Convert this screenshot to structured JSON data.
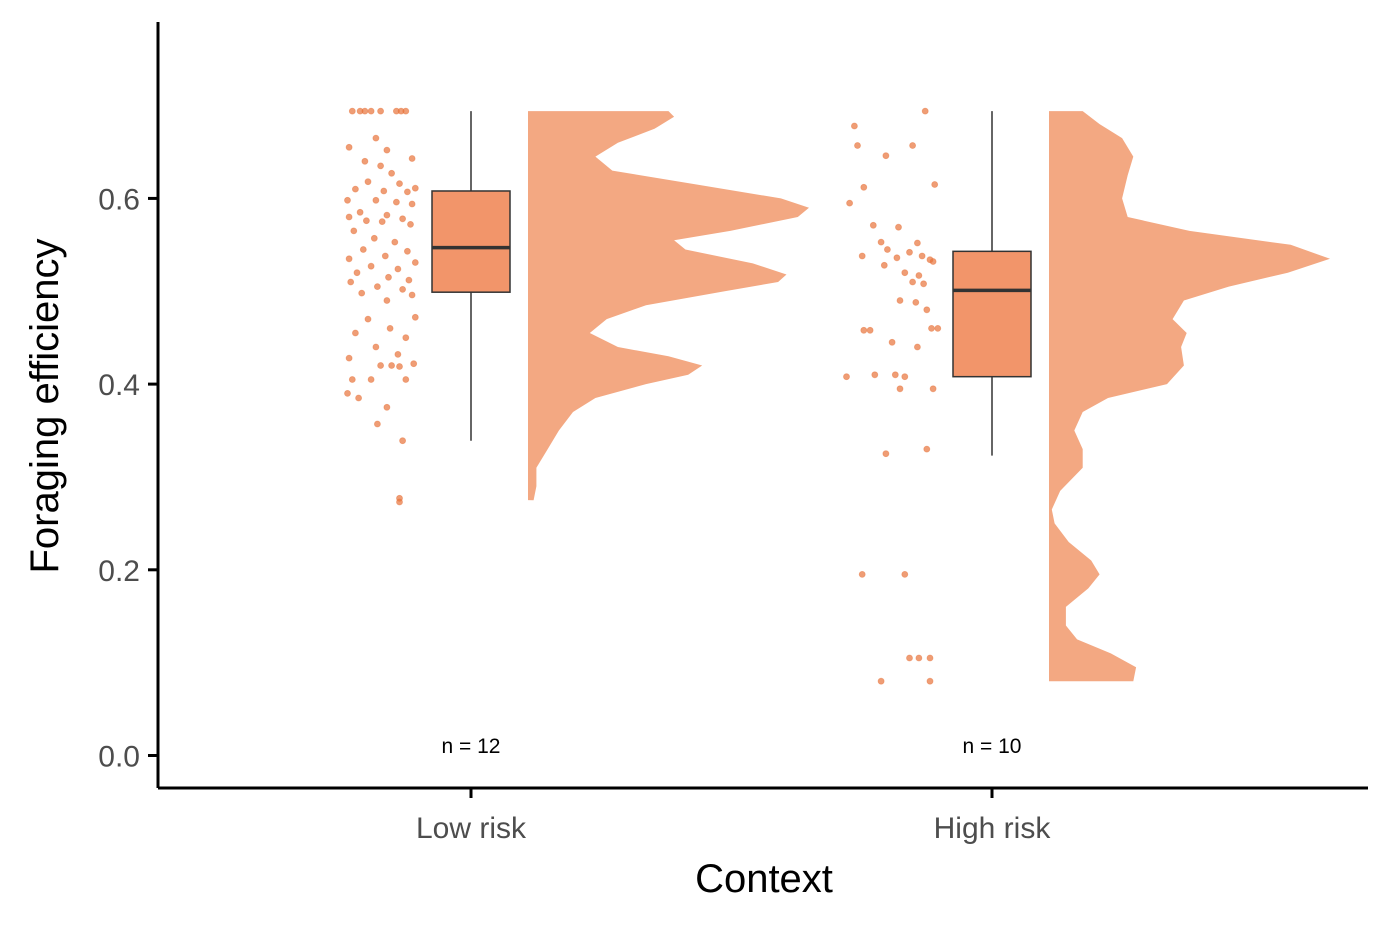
{
  "chart_data": {
    "type": "raincloud",
    "xlabel": "Context",
    "ylabel": "Foraging efficiency",
    "ylim": [
      -0.035,
      0.79
    ],
    "yticks": [
      0.0,
      0.2,
      0.4,
      0.6
    ],
    "ytick_labels": [
      "0.0",
      "0.2",
      "0.4",
      "0.6"
    ],
    "categories": [
      "Low risk",
      "High risk"
    ],
    "colors": {
      "point": "#e8743b",
      "box_fill": "#f2956a",
      "density_fill": "#f3a882",
      "line": "#333333",
      "axis": "#000000"
    },
    "groups": [
      {
        "name": "Low risk",
        "n_label": "n = 12",
        "box": {
          "q1": 0.499,
          "median": 0.547,
          "q3": 0.608,
          "whisker_low": 0.339,
          "whisker_high": 0.694
        },
        "density": [
          [
            0.275,
            0.02
          ],
          [
            0.29,
            0.03
          ],
          [
            0.31,
            0.03
          ],
          [
            0.33,
            0.07
          ],
          [
            0.35,
            0.11
          ],
          [
            0.37,
            0.16
          ],
          [
            0.385,
            0.24
          ],
          [
            0.4,
            0.42
          ],
          [
            0.41,
            0.57
          ],
          [
            0.42,
            0.62
          ],
          [
            0.43,
            0.5
          ],
          [
            0.44,
            0.32
          ],
          [
            0.455,
            0.22
          ],
          [
            0.47,
            0.28
          ],
          [
            0.485,
            0.42
          ],
          [
            0.5,
            0.7
          ],
          [
            0.51,
            0.89
          ],
          [
            0.518,
            0.92
          ],
          [
            0.53,
            0.8
          ],
          [
            0.545,
            0.56
          ],
          [
            0.555,
            0.52
          ],
          [
            0.565,
            0.72
          ],
          [
            0.58,
            0.96
          ],
          [
            0.59,
            1.0
          ],
          [
            0.6,
            0.9
          ],
          [
            0.615,
            0.6
          ],
          [
            0.63,
            0.3
          ],
          [
            0.645,
            0.24
          ],
          [
            0.66,
            0.32
          ],
          [
            0.675,
            0.45
          ],
          [
            0.688,
            0.52
          ],
          [
            0.694,
            0.5
          ]
        ],
        "points": [
          [
            -0.05,
            0.694
          ],
          [
            -0.1,
            0.694
          ],
          [
            0.02,
            0.694
          ],
          [
            0.18,
            0.694
          ],
          [
            0.21,
            0.694
          ],
          [
            0.08,
            0.694
          ],
          [
            0.24,
            0.694
          ],
          [
            -0.02,
            0.694
          ],
          [
            0.05,
            0.665
          ],
          [
            -0.12,
            0.655
          ],
          [
            0.12,
            0.652
          ],
          [
            0.28,
            0.643
          ],
          [
            -0.02,
            0.64
          ],
          [
            0.08,
            0.635
          ],
          [
            0.15,
            0.627
          ],
          [
            0.0,
            0.618
          ],
          [
            0.2,
            0.616
          ],
          [
            0.3,
            0.611
          ],
          [
            -0.08,
            0.61
          ],
          [
            0.1,
            0.608
          ],
          [
            0.25,
            0.607
          ],
          [
            -0.13,
            0.598
          ],
          [
            0.05,
            0.598
          ],
          [
            0.18,
            0.596
          ],
          [
            0.28,
            0.594
          ],
          [
            -0.05,
            0.585
          ],
          [
            0.12,
            0.582
          ],
          [
            -0.12,
            0.58
          ],
          [
            0.22,
            0.578
          ],
          [
            -0.01,
            0.576
          ],
          [
            0.09,
            0.575
          ],
          [
            0.27,
            0.572
          ],
          [
            -0.09,
            0.565
          ],
          [
            0.04,
            0.557
          ],
          [
            0.17,
            0.553
          ],
          [
            -0.03,
            0.545
          ],
          [
            0.25,
            0.543
          ],
          [
            0.11,
            0.538
          ],
          [
            -0.12,
            0.535
          ],
          [
            0.3,
            0.531
          ],
          [
            0.02,
            0.527
          ],
          [
            0.19,
            0.524
          ],
          [
            -0.07,
            0.52
          ],
          [
            0.13,
            0.515
          ],
          [
            0.26,
            0.512
          ],
          [
            -0.11,
            0.51
          ],
          [
            0.06,
            0.505
          ],
          [
            0.22,
            0.502
          ],
          [
            -0.04,
            0.498
          ],
          [
            0.28,
            0.496
          ],
          [
            0.12,
            0.49
          ],
          [
            0.3,
            0.472
          ],
          [
            0.0,
            0.47
          ],
          [
            0.14,
            0.46
          ],
          [
            -0.08,
            0.455
          ],
          [
            0.24,
            0.45
          ],
          [
            0.05,
            0.44
          ],
          [
            0.19,
            0.432
          ],
          [
            -0.12,
            0.428
          ],
          [
            0.29,
            0.422
          ],
          [
            0.08,
            0.42
          ],
          [
            0.15,
            0.42
          ],
          [
            0.2,
            0.419
          ],
          [
            -0.1,
            0.405
          ],
          [
            0.02,
            0.405
          ],
          [
            0.24,
            0.405
          ],
          [
            -0.13,
            0.39
          ],
          [
            -0.06,
            0.385
          ],
          [
            0.12,
            0.375
          ],
          [
            0.06,
            0.357
          ],
          [
            0.22,
            0.339
          ],
          [
            0.2,
            0.277
          ],
          [
            0.2,
            0.273
          ]
        ]
      },
      {
        "name": "High risk",
        "n_label": "n = 10",
        "box": {
          "q1": 0.408,
          "median": 0.501,
          "q3": 0.543,
          "whisker_low": 0.323,
          "whisker_high": 0.694
        },
        "density": [
          [
            0.08,
            0.3
          ],
          [
            0.095,
            0.31
          ],
          [
            0.11,
            0.22
          ],
          [
            0.125,
            0.1
          ],
          [
            0.14,
            0.06
          ],
          [
            0.16,
            0.06
          ],
          [
            0.18,
            0.14
          ],
          [
            0.195,
            0.18
          ],
          [
            0.21,
            0.15
          ],
          [
            0.23,
            0.07
          ],
          [
            0.25,
            0.02
          ],
          [
            0.265,
            0.01
          ],
          [
            0.285,
            0.04
          ],
          [
            0.31,
            0.12
          ],
          [
            0.33,
            0.12
          ],
          [
            0.35,
            0.09
          ],
          [
            0.37,
            0.12
          ],
          [
            0.385,
            0.21
          ],
          [
            0.4,
            0.42
          ],
          [
            0.42,
            0.48
          ],
          [
            0.44,
            0.47
          ],
          [
            0.455,
            0.49
          ],
          [
            0.47,
            0.44
          ],
          [
            0.49,
            0.48
          ],
          [
            0.505,
            0.64
          ],
          [
            0.52,
            0.85
          ],
          [
            0.535,
            1.0
          ],
          [
            0.55,
            0.86
          ],
          [
            0.565,
            0.5
          ],
          [
            0.58,
            0.28
          ],
          [
            0.6,
            0.26
          ],
          [
            0.625,
            0.28
          ],
          [
            0.645,
            0.3
          ],
          [
            0.665,
            0.26
          ],
          [
            0.68,
            0.18
          ],
          [
            0.694,
            0.12
          ]
        ],
        "points": [
          [
            0.23,
            0.694
          ],
          [
            -0.22,
            0.678
          ],
          [
            -0.2,
            0.657
          ],
          [
            0.15,
            0.657
          ],
          [
            -0.02,
            0.646
          ],
          [
            0.29,
            0.615
          ],
          [
            -0.16,
            0.612
          ],
          [
            -0.25,
            0.595
          ],
          [
            -0.1,
            0.571
          ],
          [
            0.06,
            0.569
          ],
          [
            -0.05,
            0.553
          ],
          [
            0.18,
            0.552
          ],
          [
            -0.01,
            0.545
          ],
          [
            0.13,
            0.542
          ],
          [
            0.21,
            0.538
          ],
          [
            -0.17,
            0.538
          ],
          [
            0.05,
            0.536
          ],
          [
            0.26,
            0.534
          ],
          [
            0.28,
            0.532
          ],
          [
            -0.03,
            0.528
          ],
          [
            0.1,
            0.52
          ],
          [
            0.19,
            0.517
          ],
          [
            0.15,
            0.51
          ],
          [
            0.22,
            0.508
          ],
          [
            0.07,
            0.49
          ],
          [
            0.17,
            0.488
          ],
          [
            0.24,
            0.48
          ],
          [
            -0.16,
            0.458
          ],
          [
            -0.12,
            0.458
          ],
          [
            0.27,
            0.46
          ],
          [
            0.31,
            0.46
          ],
          [
            0.02,
            0.445
          ],
          [
            0.18,
            0.44
          ],
          [
            -0.09,
            0.41
          ],
          [
            0.04,
            0.41
          ],
          [
            0.1,
            0.408
          ],
          [
            -0.27,
            0.408
          ],
          [
            0.07,
            0.395
          ],
          [
            0.28,
            0.395
          ],
          [
            0.24,
            0.33
          ],
          [
            -0.02,
            0.325
          ],
          [
            -0.17,
            0.195
          ],
          [
            0.1,
            0.195
          ],
          [
            0.13,
            0.105
          ],
          [
            0.19,
            0.105
          ],
          [
            0.26,
            0.105
          ],
          [
            -0.05,
            0.08
          ],
          [
            0.26,
            0.08
          ]
        ]
      }
    ]
  }
}
